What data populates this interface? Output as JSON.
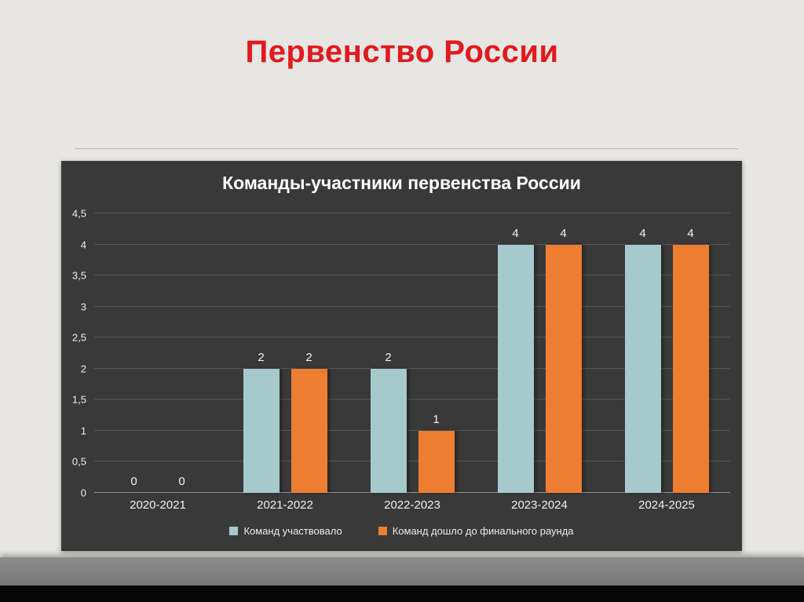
{
  "slide": {
    "title": "Первенство России",
    "title_color": "#e2191f"
  },
  "chart_data": {
    "type": "bar",
    "title": "Команды-участники первенства России",
    "categories": [
      "2020-2021",
      "2021-2022",
      "2022-2023",
      "2023-2024",
      "2024-2025"
    ],
    "series": [
      {
        "name": "Команд участвовало",
        "color": "#a6c9cc",
        "values": [
          0,
          2,
          2,
          4,
          4
        ]
      },
      {
        "name": "Команд дошло до финального раунда",
        "color": "#ed7d31",
        "values": [
          0,
          2,
          1,
          4,
          4
        ]
      }
    ],
    "ylim": [
      0,
      4.5
    ],
    "y_ticks": [
      {
        "value": 4.5,
        "label": "4,5"
      },
      {
        "value": 4,
        "label": "4"
      },
      {
        "value": 3.5,
        "label": "3,5"
      },
      {
        "value": 3,
        "label": "3"
      },
      {
        "value": 2.5,
        "label": "2,5"
      },
      {
        "value": 2,
        "label": "2"
      },
      {
        "value": 1.5,
        "label": "1,5"
      },
      {
        "value": 1,
        "label": "1"
      },
      {
        "value": 0.5,
        "label": "0,5"
      },
      {
        "value": 0,
        "label": "0"
      }
    ],
    "grid": true,
    "legend_position": "bottom",
    "data_labels": true,
    "panel_background": "#393939"
  }
}
